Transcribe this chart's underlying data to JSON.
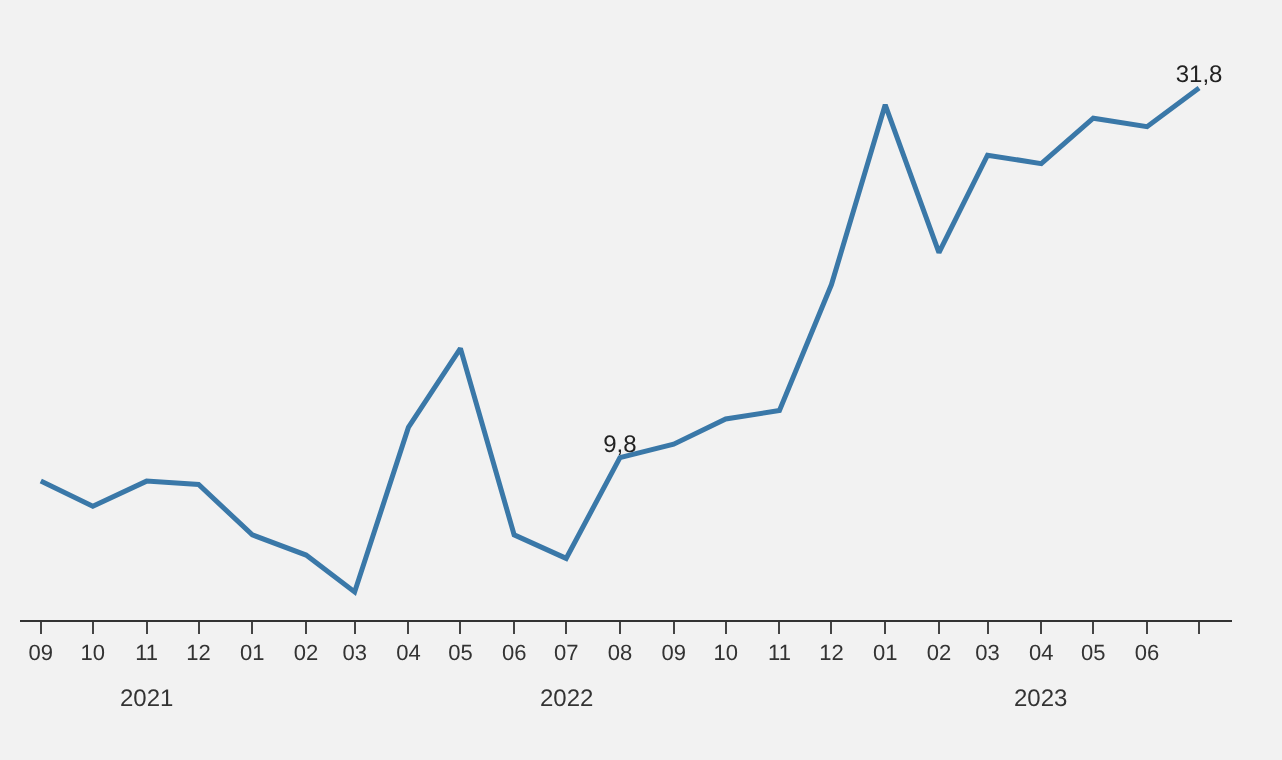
{
  "chart_data": {
    "type": "line",
    "x": [
      "2021-09",
      "2021-10",
      "2021-11",
      "2021-12",
      "2022-01",
      "2022-02",
      "2022-03",
      "2022-04",
      "2022-05",
      "2022-06",
      "2022-07",
      "2022-08",
      "2022-09",
      "2022-10",
      "2022-11",
      "2022-12",
      "2023-01",
      "2023-02",
      "2023-03",
      "2023-04",
      "2023-05",
      "2023-06",
      "2023-07"
    ],
    "series": [
      {
        "color": "#3a78a8",
        "values": [
          8.4,
          6.9,
          8.4,
          8.2,
          5.2,
          4.0,
          1.8,
          11.6,
          16.3,
          5.2,
          3.8,
          9.8,
          10.6,
          12.1,
          12.6,
          20.1,
          30.8,
          22.0,
          27.8,
          27.3,
          30.0,
          29.5,
          31.8
        ],
        "value_labels": [
          null,
          null,
          null,
          null,
          null,
          null,
          null,
          null,
          null,
          null,
          null,
          "9,8",
          null,
          null,
          null,
          null,
          null,
          null,
          null,
          null,
          null,
          null,
          "31,8"
        ]
      }
    ],
    "xticks": [
      {
        "value": "2021-09",
        "label": "09"
      },
      {
        "value": "2021-10",
        "label": "10"
      },
      {
        "value": "2021-11",
        "label": "11"
      },
      {
        "value": "2021-12",
        "label": "12"
      },
      {
        "value": "2022-01",
        "label": "01"
      },
      {
        "value": "2022-02",
        "label": "02"
      },
      {
        "value": "2022-03",
        "label": "03"
      },
      {
        "value": "2022-04",
        "label": "04"
      },
      {
        "value": "2022-05",
        "label": "05"
      },
      {
        "value": "2022-06",
        "label": "06"
      },
      {
        "value": "2022-07",
        "label": "07"
      },
      {
        "value": "2022-08",
        "label": "08"
      },
      {
        "value": "2022-09",
        "label": "09"
      },
      {
        "value": "2022-10",
        "label": "10"
      },
      {
        "value": "2022-11",
        "label": "11"
      },
      {
        "value": "2022-12",
        "label": "12"
      },
      {
        "value": "2023-01",
        "label": "01"
      },
      {
        "value": "2023-02",
        "label": "02"
      },
      {
        "value": "2023-03",
        "label": "03"
      },
      {
        "value": "2023-04",
        "label": "04"
      },
      {
        "value": "2023-05",
        "label": "05"
      },
      {
        "value": "2023-06",
        "label": "06"
      },
      {
        "value": "2023-07",
        "label": null
      }
    ],
    "xlim": [
      "2021-08-20",
      "2023-07-20"
    ],
    "tick_labels": "x",
    "annotations": [
      "2021",
      "2022",
      "2023"
    ],
    "grid": false,
    "marker": "none",
    "line_style": "solid"
  }
}
